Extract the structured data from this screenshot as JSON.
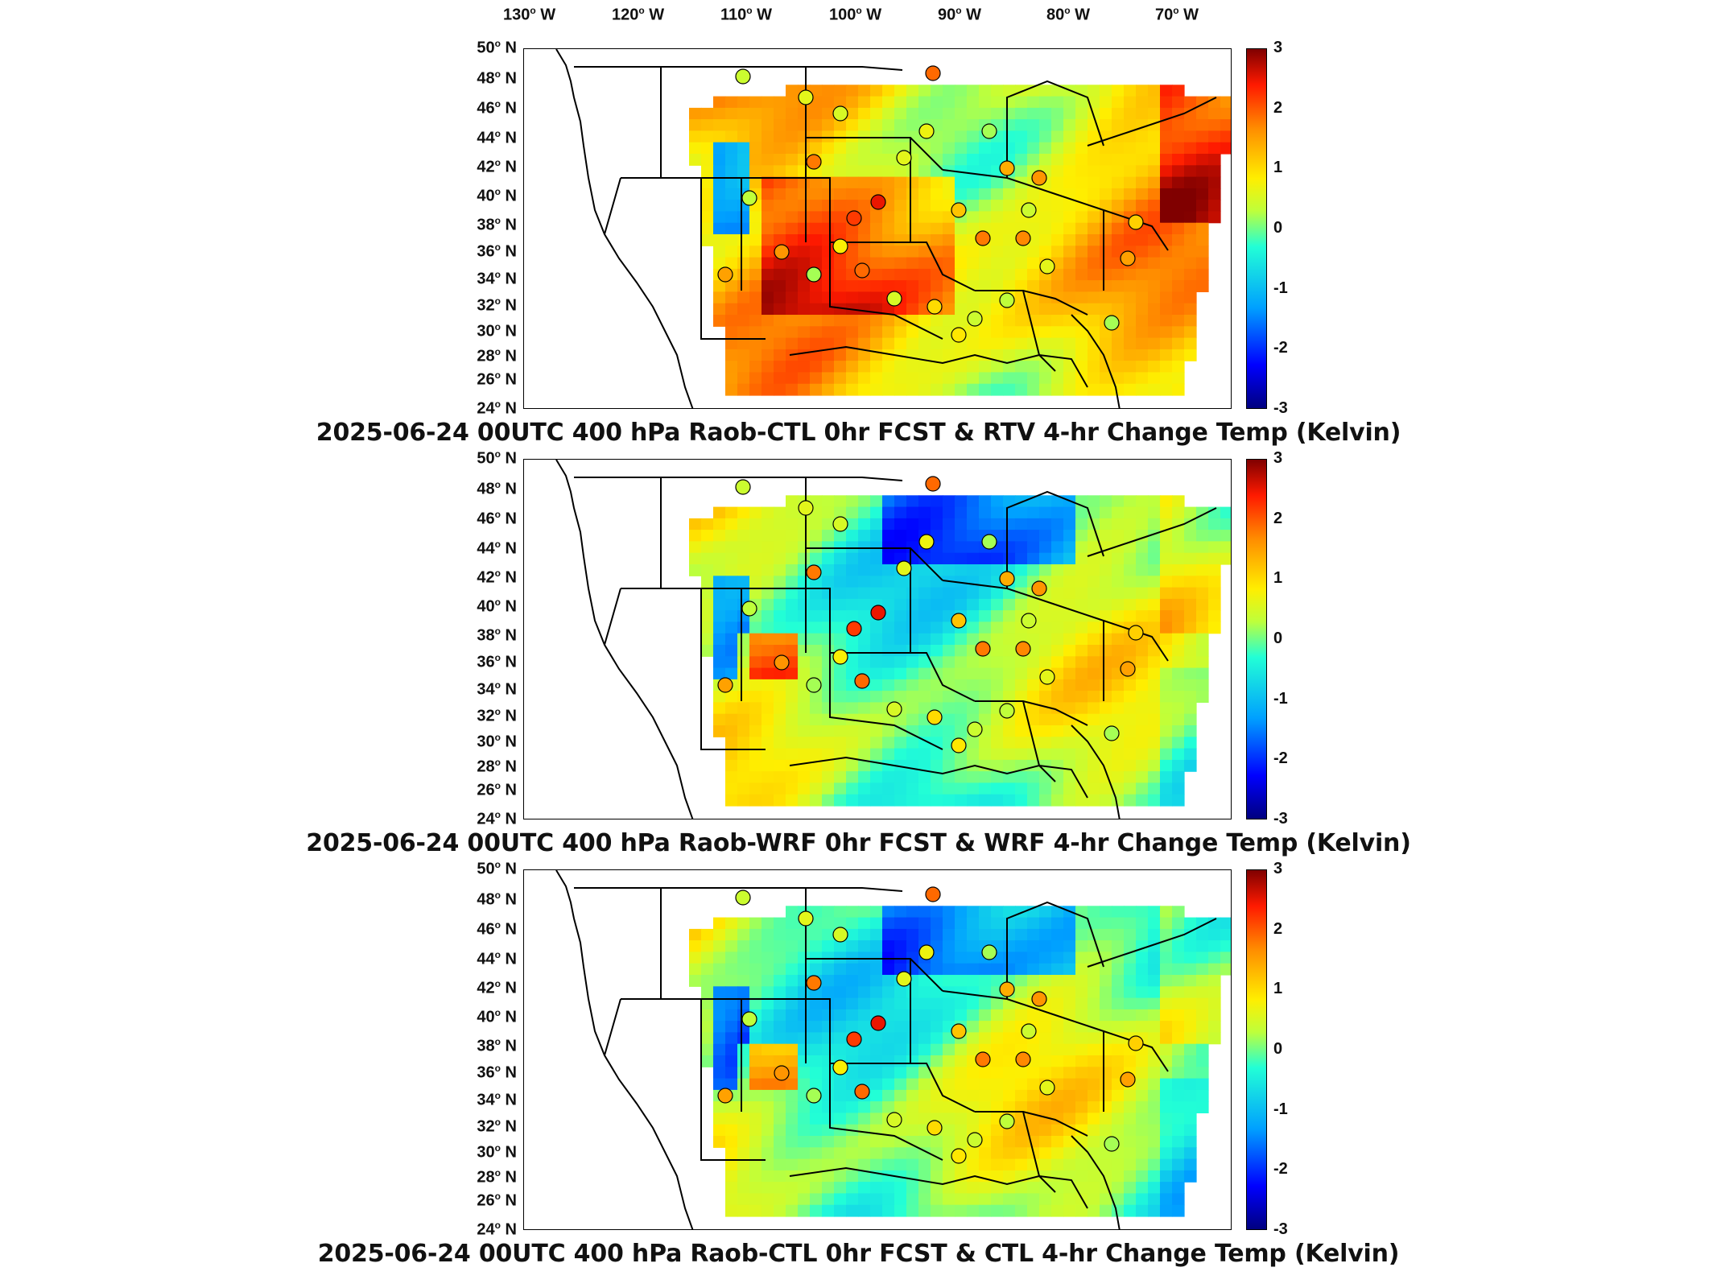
{
  "lon_labels": [
    "130",
    "120",
    "110",
    "100",
    "90",
    "80",
    "70"
  ],
  "lon_suffix": "W",
  "lat_labels": [
    "50",
    "48",
    "46",
    "44",
    "42",
    "40",
    "38",
    "36",
    "34",
    "32",
    "30",
    "28",
    "26",
    "24"
  ],
  "lat_suffix": "N",
  "colorbar": {
    "ticks": [
      "3",
      "2",
      "1",
      "0",
      "-1",
      "-2",
      "-3"
    ],
    "range": [
      -3,
      3
    ],
    "colormap": "jet"
  },
  "panels": [
    {
      "title": "2025-06-24 00UTC 400 hPa Raob-CTL 0hr FCST & RTV 4-hr Change Temp (Kelvin)",
      "field_tone": "warm"
    },
    {
      "title": "2025-06-24 00UTC 400 hPa Raob-WRF 0hr FCST & WRF 4-hr Change Temp (Kelvin)",
      "field_tone": "mixed"
    },
    {
      "title": "2025-06-24 00UTC 400 hPa Raob-CTL 0hr FCST & CTL 4-hr Change Temp (Kelvin)",
      "field_tone": "mixed"
    }
  ],
  "raob_station_values": [
    0.4,
    0.6,
    0.5,
    1.9,
    0.2,
    0.7,
    1.8,
    0.6,
    1.4,
    1.6,
    0.3,
    2.2,
    2.5,
    1.2,
    0.4,
    1.8,
    0.8,
    1.6,
    1.5,
    0.2,
    1.7,
    1.5,
    1.0,
    0.5,
    1.9,
    0.4,
    0.3,
    1.1,
    0.6,
    0.2,
    0.9
  ]
}
